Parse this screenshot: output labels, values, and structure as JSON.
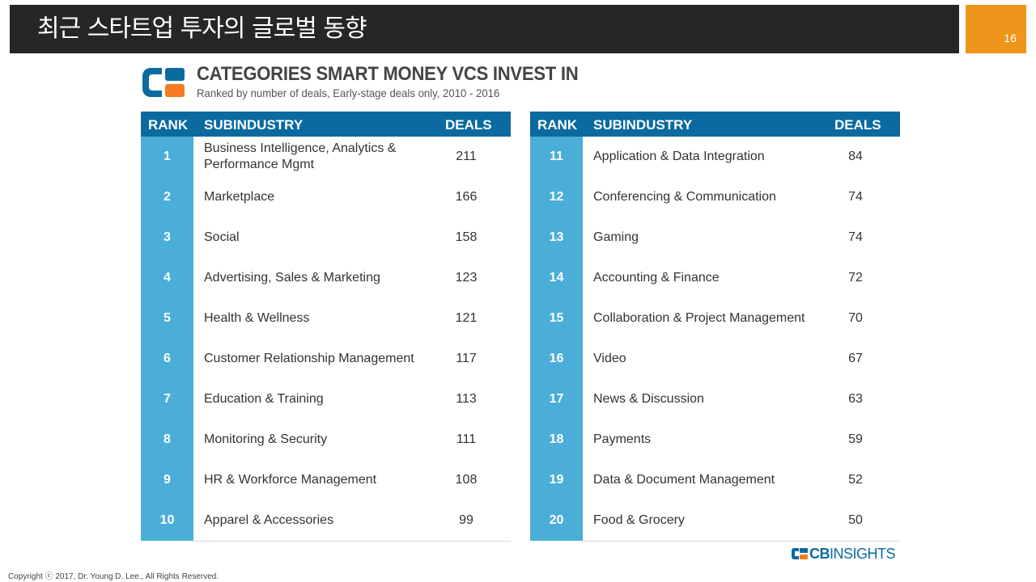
{
  "slide": {
    "title": "최근 스타트업 투자의 글로벌 동향",
    "page_number": "16",
    "copyright": "Copyright ⓒ 2017, Dr. Young D. Lee., All Rights Reserved."
  },
  "chart": {
    "title": "CATEGORIES SMART MONEY VCS INVEST IN",
    "subtitle": "Ranked by number of deals, Early-stage deals only, 2010 - 2016",
    "source_logo": {
      "prefix": "CB",
      "suffix": "INSIGHTS"
    },
    "colors": {
      "header": "#0b6aa0",
      "rank_cell": "#4aaed8",
      "logo_orange": "#f47b20"
    }
  },
  "tables": {
    "left": {
      "headers": {
        "rank": "RANK",
        "subindustry": "SUBINDUSTRY",
        "deals": "DEALS"
      },
      "rows": [
        {
          "rank": "1",
          "name": "Business Intelligence, Analytics & Performance Mgmt",
          "deals": "211"
        },
        {
          "rank": "2",
          "name": "Marketplace",
          "deals": "166"
        },
        {
          "rank": "3",
          "name": "Social",
          "deals": "158"
        },
        {
          "rank": "4",
          "name": "Advertising, Sales & Marketing",
          "deals": "123"
        },
        {
          "rank": "5",
          "name": "Health & Wellness",
          "deals": "121"
        },
        {
          "rank": "6",
          "name": "Customer Relationship Management",
          "deals": "117"
        },
        {
          "rank": "7",
          "name": "Education & Training",
          "deals": "113"
        },
        {
          "rank": "8",
          "name": "Monitoring & Security",
          "deals": "111"
        },
        {
          "rank": "9",
          "name": "HR & Workforce Management",
          "deals": "108"
        },
        {
          "rank": "10",
          "name": "Apparel & Accessories",
          "deals": "99"
        }
      ]
    },
    "right": {
      "headers": {
        "rank": "RANK",
        "subindustry": "SUBINDUSTRY",
        "deals": "DEALS"
      },
      "rows": [
        {
          "rank": "11",
          "name": "Application & Data Integration",
          "deals": "84"
        },
        {
          "rank": "12",
          "name": "Conferencing & Communication",
          "deals": "74"
        },
        {
          "rank": "13",
          "name": "Gaming",
          "deals": "74"
        },
        {
          "rank": "14",
          "name": "Accounting & Finance",
          "deals": "72"
        },
        {
          "rank": "15",
          "name": "Collaboration & Project Management",
          "deals": "70"
        },
        {
          "rank": "16",
          "name": "Video",
          "deals": "67"
        },
        {
          "rank": "17",
          "name": "News & Discussion",
          "deals": "63"
        },
        {
          "rank": "18",
          "name": "Payments",
          "deals": "59"
        },
        {
          "rank": "19",
          "name": "Data & Document Management",
          "deals": "52"
        },
        {
          "rank": "20",
          "name": "Food & Grocery",
          "deals": "50"
        }
      ]
    }
  }
}
